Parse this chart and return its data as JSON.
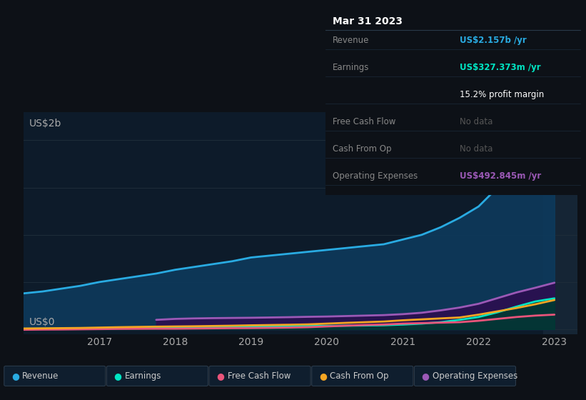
{
  "bg_color": "#0d1117",
  "plot_bg_color": "#0d1b2a",
  "ylabel": "US$2b",
  "y0_label": "US$0",
  "x_ticks": [
    2017,
    2018,
    2019,
    2020,
    2021,
    2022,
    2023
  ],
  "highlight_x": 2023.0,
  "series": {
    "Revenue": {
      "color": "#29abe2",
      "fill_color": "#0d3a5c",
      "x": [
        2016.0,
        2016.25,
        2016.5,
        2016.75,
        2017.0,
        2017.25,
        2017.5,
        2017.75,
        2018.0,
        2018.25,
        2018.5,
        2018.75,
        2019.0,
        2019.25,
        2019.5,
        2019.75,
        2020.0,
        2020.25,
        2020.5,
        2020.75,
        2021.0,
        2021.25,
        2021.5,
        2021.75,
        2022.0,
        2022.25,
        2022.5,
        2022.75,
        2023.0
      ],
      "y": [
        0.38,
        0.4,
        0.43,
        0.46,
        0.5,
        0.53,
        0.56,
        0.59,
        0.63,
        0.66,
        0.69,
        0.72,
        0.76,
        0.78,
        0.8,
        0.82,
        0.84,
        0.86,
        0.88,
        0.9,
        0.95,
        1.0,
        1.08,
        1.18,
        1.3,
        1.5,
        1.7,
        1.95,
        2.157
      ]
    },
    "Earnings": {
      "color": "#00e5c3",
      "fill_color": "#003a33",
      "x": [
        2016.0,
        2016.25,
        2016.5,
        2016.75,
        2017.0,
        2017.25,
        2017.5,
        2017.75,
        2018.0,
        2018.25,
        2018.5,
        2018.75,
        2019.0,
        2019.25,
        2019.5,
        2019.75,
        2020.0,
        2020.25,
        2020.5,
        2020.75,
        2021.0,
        2021.25,
        2021.5,
        2021.75,
        2022.0,
        2022.25,
        2022.5,
        2022.75,
        2023.0
      ],
      "y": [
        0.005,
        0.006,
        0.007,
        0.008,
        0.01,
        0.012,
        0.013,
        0.015,
        0.018,
        0.02,
        0.022,
        0.025,
        0.028,
        0.03,
        0.032,
        0.034,
        0.036,
        0.038,
        0.04,
        0.043,
        0.05,
        0.06,
        0.075,
        0.1,
        0.13,
        0.18,
        0.24,
        0.295,
        0.3274
      ]
    },
    "Free Cash Flow": {
      "color": "#e9547a",
      "fill_color": null,
      "x": [
        2016.0,
        2016.25,
        2016.5,
        2016.75,
        2017.0,
        2017.25,
        2017.5,
        2017.75,
        2018.0,
        2018.25,
        2018.5,
        2018.75,
        2019.0,
        2019.25,
        2019.5,
        2019.75,
        2020.0,
        2020.25,
        2020.5,
        2020.75,
        2021.0,
        2021.25,
        2021.5,
        2021.75,
        2022.0,
        2022.25,
        2022.5,
        2022.75,
        2023.0
      ],
      "y": [
        -0.005,
        -0.003,
        -0.002,
        0.0,
        0.002,
        0.004,
        0.005,
        0.006,
        0.006,
        0.008,
        0.01,
        0.012,
        0.013,
        0.015,
        0.018,
        0.022,
        0.03,
        0.038,
        0.045,
        0.05,
        0.06,
        0.065,
        0.07,
        0.075,
        0.09,
        0.11,
        0.13,
        0.145,
        0.155
      ]
    },
    "Cash From Op": {
      "color": "#f5a623",
      "fill_color": null,
      "x": [
        2016.0,
        2016.25,
        2016.5,
        2016.75,
        2017.0,
        2017.25,
        2017.5,
        2017.75,
        2018.0,
        2018.25,
        2018.5,
        2018.75,
        2019.0,
        2019.25,
        2019.5,
        2019.75,
        2020.0,
        2020.25,
        2020.5,
        2020.75,
        2021.0,
        2021.25,
        2021.5,
        2021.75,
        2022.0,
        2022.25,
        2022.5,
        2022.75,
        2023.0
      ],
      "y": [
        0.008,
        0.01,
        0.012,
        0.014,
        0.018,
        0.022,
        0.025,
        0.028,
        0.03,
        0.032,
        0.035,
        0.038,
        0.042,
        0.045,
        0.048,
        0.052,
        0.06,
        0.068,
        0.075,
        0.082,
        0.095,
        0.105,
        0.115,
        0.125,
        0.155,
        0.19,
        0.225,
        0.265,
        0.31
      ]
    },
    "Operating Expenses": {
      "color": "#9b59b6",
      "fill_color": "#2a1050",
      "x": [
        2017.75,
        2018.0,
        2018.25,
        2018.5,
        2018.75,
        2019.0,
        2019.25,
        2019.5,
        2019.75,
        2020.0,
        2020.25,
        2020.5,
        2020.75,
        2021.0,
        2021.25,
        2021.5,
        2021.75,
        2022.0,
        2022.25,
        2022.5,
        2022.75,
        2023.0
      ],
      "y": [
        0.1,
        0.11,
        0.115,
        0.118,
        0.12,
        0.122,
        0.125,
        0.128,
        0.132,
        0.135,
        0.14,
        0.145,
        0.15,
        0.16,
        0.175,
        0.2,
        0.23,
        0.27,
        0.33,
        0.39,
        0.44,
        0.493
      ]
    }
  },
  "tooltip": {
    "title": "Mar 31 2023",
    "rows": [
      {
        "label": "Revenue",
        "value": "US$2.157b /yr",
        "value_color": "#29abe2",
        "bold_value": true
      },
      {
        "label": "Earnings",
        "value": "US$327.373m /yr",
        "value_color": "#00e5c3",
        "bold_value": true
      },
      {
        "label": "",
        "value": "15.2% profit margin",
        "value_color": "#ffffff",
        "bold_value": false
      },
      {
        "label": "Free Cash Flow",
        "value": "No data",
        "value_color": "#555555",
        "bold_value": false
      },
      {
        "label": "Cash From Op",
        "value": "No data",
        "value_color": "#555555",
        "bold_value": false
      },
      {
        "label": "Operating Expenses",
        "value": "US$492.845m /yr",
        "value_color": "#9b59b6",
        "bold_value": true
      }
    ]
  },
  "legend": [
    {
      "label": "Revenue",
      "color": "#29abe2"
    },
    {
      "label": "Earnings",
      "color": "#00e5c3"
    },
    {
      "label": "Free Cash Flow",
      "color": "#e9547a"
    },
    {
      "label": "Cash From Op",
      "color": "#f5a623"
    },
    {
      "label": "Operating Expenses",
      "color": "#9b59b6"
    }
  ],
  "ylim": [
    -0.05,
    2.3
  ],
  "xlim": [
    2016.0,
    2023.3
  ],
  "grid_lines": [
    0.0,
    0.5,
    1.0,
    1.5,
    2.0
  ]
}
